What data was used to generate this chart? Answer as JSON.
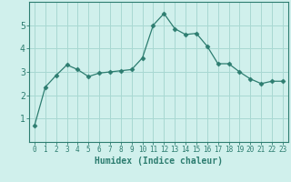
{
  "x": [
    0,
    1,
    2,
    3,
    4,
    5,
    6,
    7,
    8,
    9,
    10,
    11,
    12,
    13,
    14,
    15,
    16,
    17,
    18,
    19,
    20,
    21,
    22,
    23
  ],
  "y": [
    0.7,
    2.35,
    2.85,
    3.3,
    3.1,
    2.8,
    2.95,
    3.0,
    3.05,
    3.1,
    3.6,
    5.0,
    5.5,
    4.85,
    4.6,
    4.65,
    4.1,
    3.35,
    3.35,
    3.0,
    2.7,
    2.5,
    2.6,
    2.6
  ],
  "line_color": "#2d7d70",
  "marker": "D",
  "marker_size": 2.5,
  "bg_color": "#d0f0ec",
  "grid_color": "#a8d8d2",
  "xlabel": "Humidex (Indice chaleur)",
  "xlim": [
    -0.5,
    23.5
  ],
  "ylim": [
    0,
    6
  ],
  "yticks": [
    1,
    2,
    3,
    4,
    5
  ],
  "xticks": [
    0,
    1,
    2,
    3,
    4,
    5,
    6,
    7,
    8,
    9,
    10,
    11,
    12,
    13,
    14,
    15,
    16,
    17,
    18,
    19,
    20,
    21,
    22,
    23
  ],
  "tick_color": "#2d7d70",
  "label_color": "#2d7d70",
  "axis_color": "#2d7d70",
  "font_size_xlabel": 7.0,
  "font_size_ticks_x": 5.5,
  "font_size_ticks_y": 7.0
}
